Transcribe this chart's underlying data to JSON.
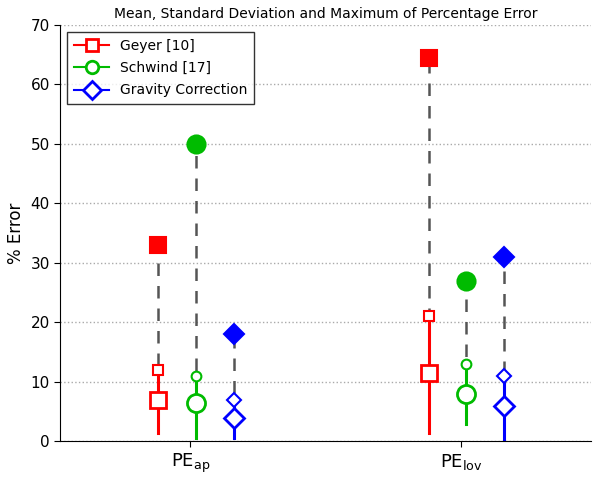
{
  "title": "Mean, Standard Deviation and Maximum of Percentage Error",
  "ylabel": "% Error",
  "ylim": [
    0,
    70
  ],
  "yticks": [
    0,
    10,
    20,
    30,
    40,
    50,
    60,
    70
  ],
  "xlim": [
    0.3,
    5.2
  ],
  "xtick_positions": [
    1.5,
    4.0
  ],
  "series": [
    {
      "name": "Geyer [10]",
      "color": "#ff0000",
      "marker": "s",
      "groups": [
        {
          "x": 1.2,
          "mean": 7.0,
          "std_low": 7.0,
          "std_high": 12.0,
          "max": 33.0,
          "min": 1.5
        },
        {
          "x": 3.7,
          "mean": 11.5,
          "std_low": 11.5,
          "std_high": 21.0,
          "max": 64.5,
          "min": 1.5
        }
      ]
    },
    {
      "name": "Schwind [17]",
      "color": "#00bb00",
      "marker": "o",
      "groups": [
        {
          "x": 1.55,
          "mean": 6.5,
          "std_low": 6.5,
          "std_high": 11.0,
          "max": 50.0,
          "min": 0.5
        },
        {
          "x": 4.05,
          "mean": 8.0,
          "std_low": 8.0,
          "std_high": 13.0,
          "max": 27.0,
          "min": 3.0
        }
      ]
    },
    {
      "name": "Gravity Correction",
      "color": "#0000ff",
      "marker": "D",
      "groups": [
        {
          "x": 1.9,
          "mean": 4.0,
          "std_low": 4.0,
          "std_high": 7.0,
          "max": 18.0,
          "min": 0.5
        },
        {
          "x": 4.4,
          "mean": 6.0,
          "std_low": 6.0,
          "std_high": 11.0,
          "max": 31.0,
          "min": 0.0
        }
      ]
    }
  ],
  "background_color": "#ffffff",
  "grid_color": "#aaaaaa",
  "dashed_color": "#555555"
}
